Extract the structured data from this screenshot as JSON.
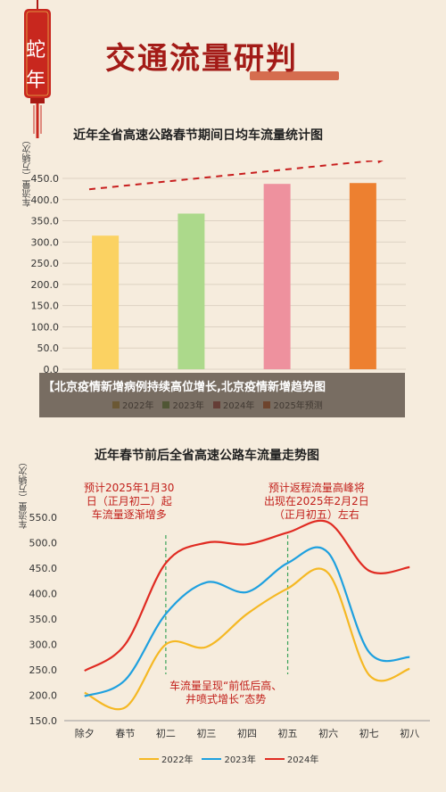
{
  "tag": {
    "line1": "蛇",
    "line2": "年"
  },
  "header": {
    "title": "交通流量研判"
  },
  "overlay": {
    "text": "【北京疫情新增病例持续高位增长,北京疫情新增趋势图"
  },
  "chart_data": [
    {
      "type": "bar",
      "title": "近年全省高速公路春节期间日均车流量统计图",
      "ylabel": "车流量（万辆次）",
      "xlabel": "",
      "ylim": [
        0,
        450
      ],
      "yticks": [
        "0.0",
        "50.0",
        "100.0",
        "150.0",
        "200.0",
        "250.0",
        "300.0",
        "350.0",
        "400.0",
        "450.0"
      ],
      "grid": true,
      "legend": "bottom",
      "categories": [
        "2022年",
        "2023年",
        "2024年",
        "2025年预测"
      ],
      "values": [
        315,
        367,
        437,
        439
      ],
      "colors": [
        "#fbd262",
        "#acd98b",
        "#ee919e",
        "#ed8030"
      ],
      "legend_colors": [
        "#c9a13a",
        "#6a9a3f",
        "#b34040",
        "#d45a20"
      ],
      "trend_arrow": true
    },
    {
      "type": "line",
      "title": "近年春节前后全省高速公路车流量走势图",
      "ylabel": "车流量（万辆次）",
      "xlabel": "",
      "ylim": [
        150,
        550
      ],
      "yticks": [
        "150.0",
        "200.0",
        "250.0",
        "300.0",
        "350.0",
        "400.0",
        "450.0",
        "500.0",
        "550.0"
      ],
      "grid": false,
      "legend": "bottom",
      "categories": [
        "除夕",
        "春节",
        "初二",
        "初三",
        "初四",
        "初五",
        "初六",
        "初七",
        "初八"
      ],
      "series": [
        {
          "name": "2022年",
          "color": "#f5b823",
          "values": [
            205,
            176,
            300,
            295,
            360,
            410,
            440,
            240,
            252
          ]
        },
        {
          "name": "2023年",
          "color": "#1ea0df",
          "values": [
            198,
            230,
            360,
            422,
            403,
            460,
            480,
            285,
            275
          ]
        },
        {
          "name": "2024年",
          "color": "#e02b22",
          "values": [
            248,
            300,
            460,
            500,
            497,
            520,
            540,
            445,
            452
          ]
        }
      ],
      "markers": [
        "初二",
        "初五"
      ],
      "annotations": [
        {
          "text": [
            "预计2025年1月30",
            "日（正月初二）起",
            "车流量逐渐增多"
          ]
        },
        {
          "text": [
            "预计返程流量高峰将",
            "出现在2025年2月2日",
            "（正月初五）左右"
          ]
        },
        {
          "text": [
            "车流量呈现“前低后高、",
            "井喷式增长”态势"
          ]
        }
      ]
    }
  ]
}
